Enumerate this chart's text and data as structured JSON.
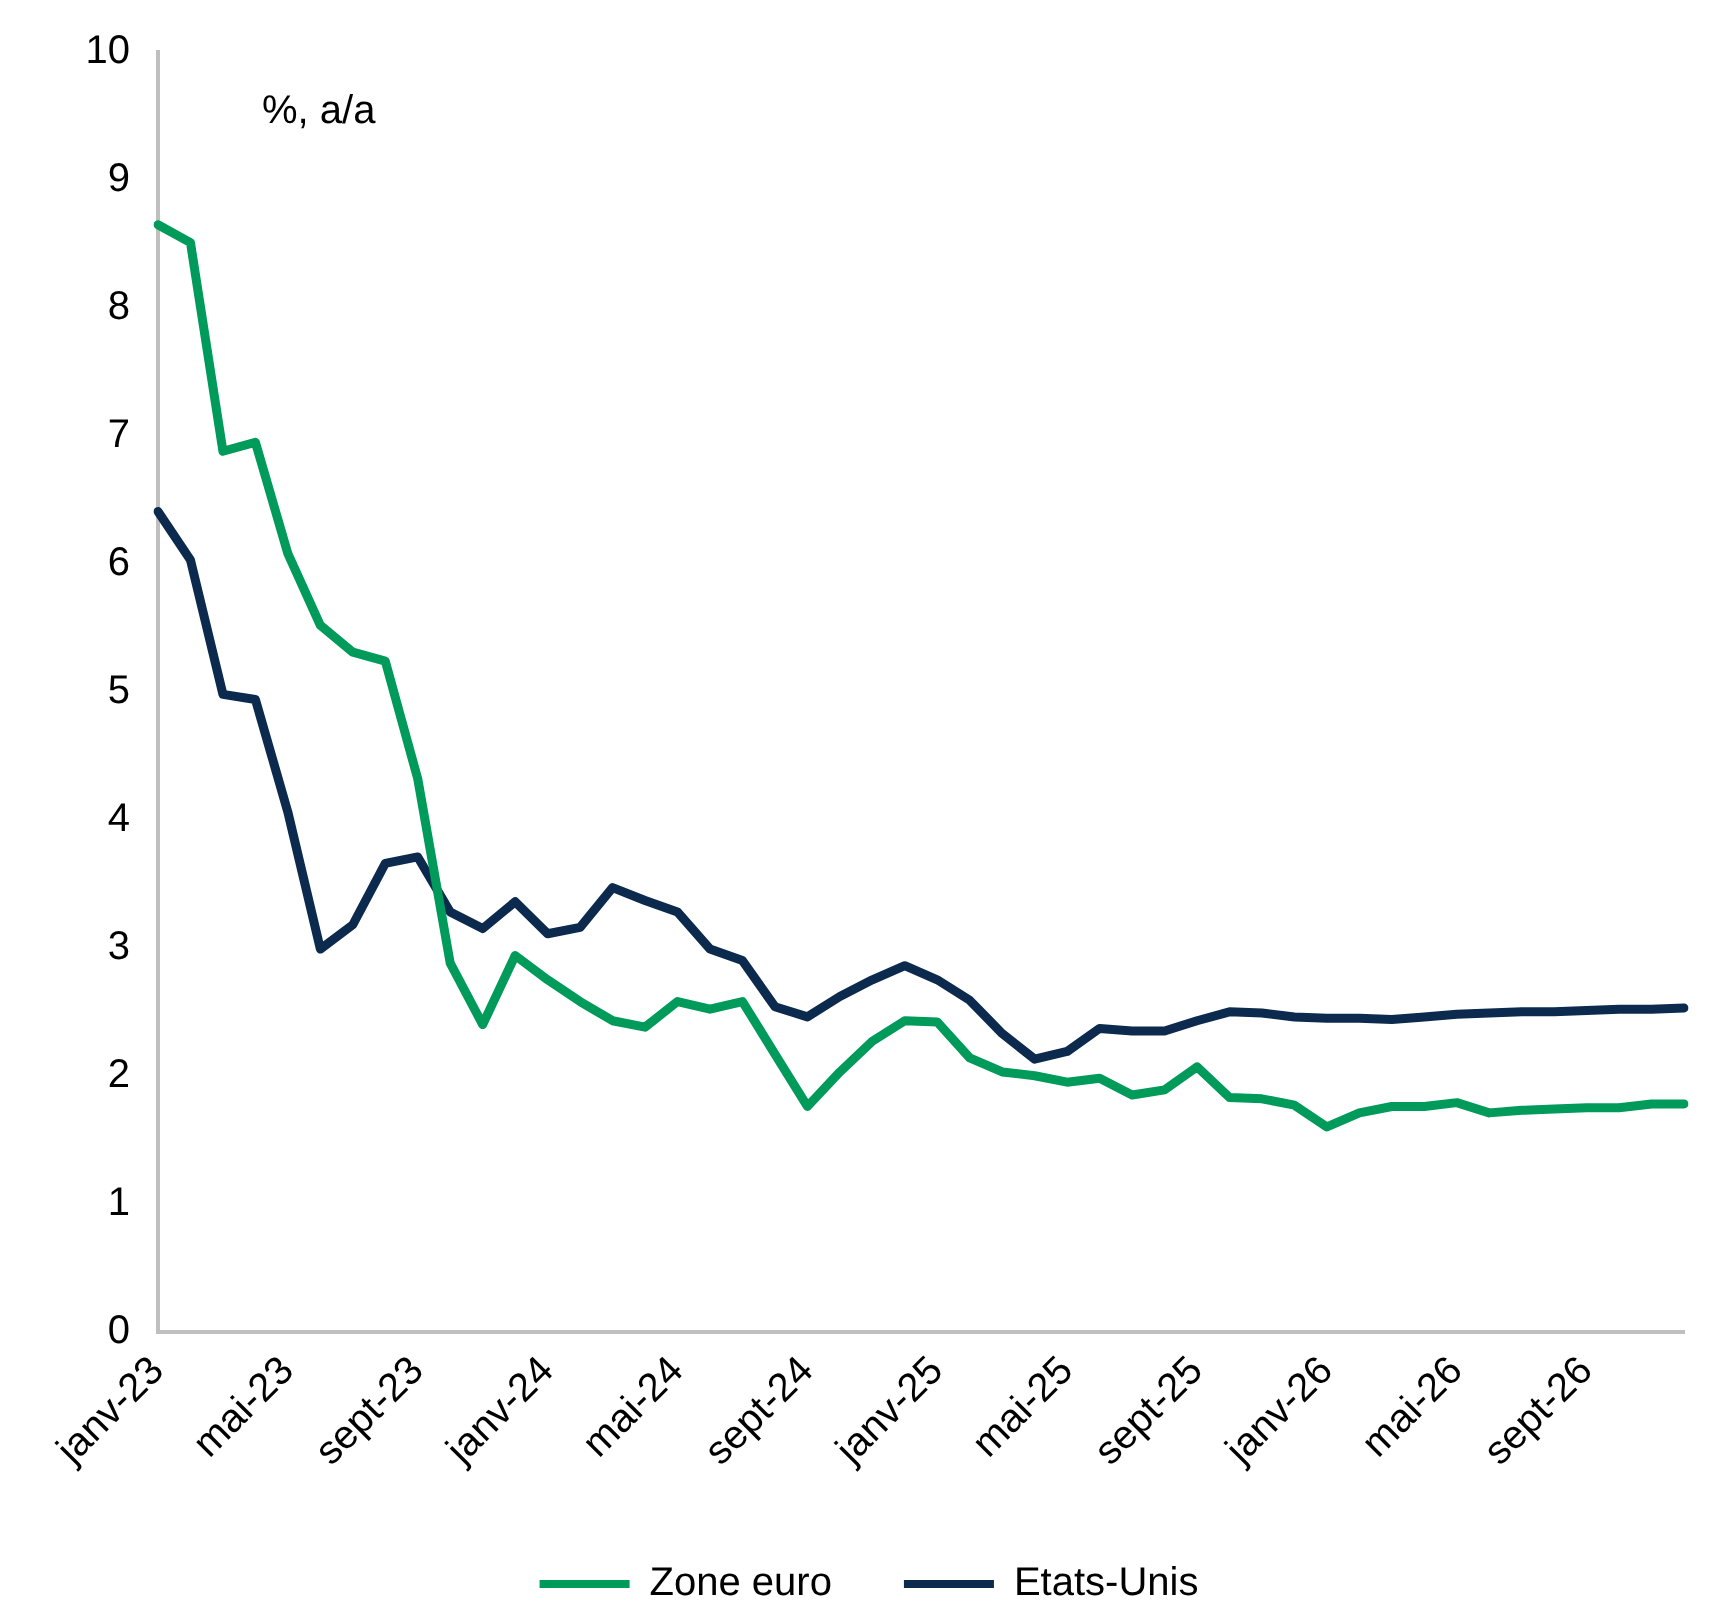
{
  "chart_data": {
    "type": "line",
    "ylabel": "%, a/a",
    "categories": [
      "janv-23",
      null,
      null,
      null,
      "mai-23",
      null,
      null,
      null,
      "sept-23",
      null,
      null,
      null,
      "janv-24",
      null,
      null,
      null,
      "mai-24",
      null,
      null,
      null,
      "sept-24",
      null,
      null,
      null,
      "janv-25",
      null,
      null,
      null,
      "mai-25",
      null,
      null,
      null,
      "sept-25",
      null,
      null,
      null,
      "janv-26",
      null,
      null,
      null,
      "mai-26",
      null,
      null,
      null,
      "sept-26",
      null,
      null,
      null
    ],
    "series": [
      {
        "name": "Zone euro",
        "color": "#009a5b",
        "values": [
          8.65,
          8.51,
          6.88,
          6.95,
          6.08,
          5.52,
          5.31,
          5.24,
          4.32,
          2.88,
          2.4,
          2.94,
          2.75,
          2.58,
          2.43,
          2.38,
          2.58,
          2.52,
          2.58,
          2.17,
          1.76,
          2.03,
          2.27,
          2.43,
          2.42,
          2.14,
          2.03,
          2.0,
          1.95,
          1.98,
          1.85,
          1.89,
          2.07,
          1.83,
          1.82,
          1.77,
          1.6,
          1.71,
          1.76,
          1.76,
          1.79,
          1.71,
          1.73,
          1.74,
          1.75,
          1.75,
          1.78,
          1.78
        ]
      },
      {
        "name": "Etats-Unis",
        "color": "#0c2a4d",
        "values": [
          6.41,
          6.03,
          4.98,
          4.94,
          4.06,
          2.99,
          3.18,
          3.66,
          3.71,
          3.28,
          3.15,
          3.36,
          3.11,
          3.16,
          3.47,
          3.37,
          3.28,
          2.99,
          2.9,
          2.54,
          2.46,
          2.62,
          2.75,
          2.86,
          2.75,
          2.59,
          2.33,
          2.13,
          2.19,
          2.37,
          2.35,
          2.35,
          2.43,
          2.5,
          2.49,
          2.46,
          2.45,
          2.45,
          2.44,
          2.46,
          2.48,
          2.49,
          2.5,
          2.5,
          2.51,
          2.52,
          2.52,
          2.53
        ]
      }
    ],
    "ylim": [
      0,
      10
    ],
    "yticks": [
      0,
      1,
      2,
      3,
      4,
      5,
      6,
      7,
      8,
      9,
      10
    ],
    "grid": false,
    "legend": "bottom",
    "marker": "none",
    "line_style": "solid"
  }
}
